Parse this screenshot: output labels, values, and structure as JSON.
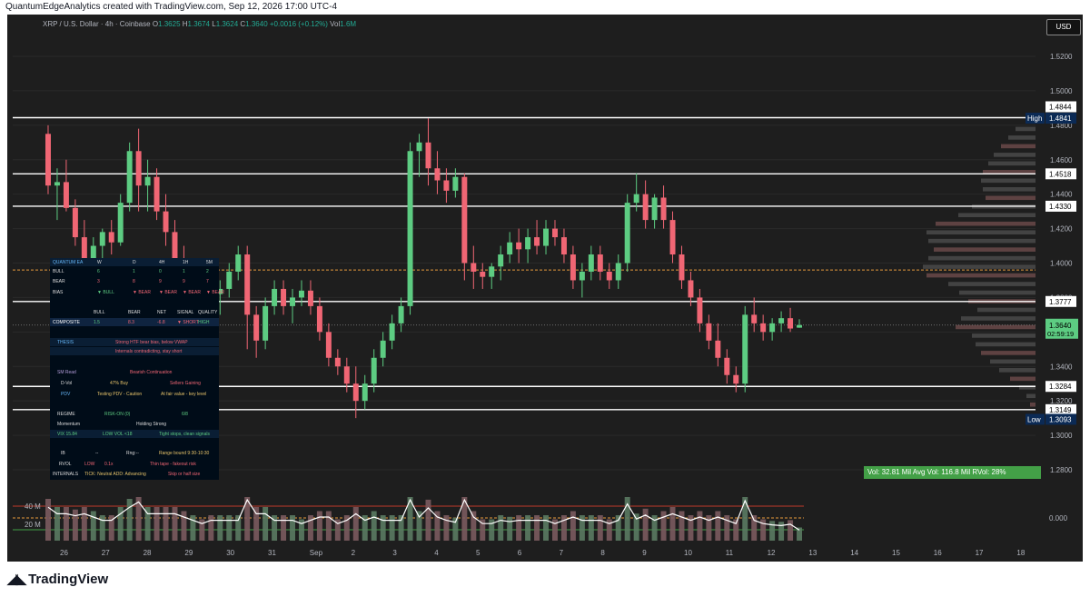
{
  "header": {
    "attribution": "QuantumEdgeAnalytics created with TradingView.com, Sep 12, 2026 17:00 UTC-4"
  },
  "legend": {
    "symbol": "XRP / U.S. Dollar · 4h · Coinbase",
    "open_label": "O",
    "open": "1.3625",
    "high_label": "H",
    "high": "1.3674",
    "low_label": "L",
    "low": "1.3624",
    "close_label": "C",
    "close": "1.3640",
    "change": "+0.0016 (+0.12%)",
    "vol_label": "Vol",
    "vol": "1.6M"
  },
  "currency_button": "USD",
  "branding": {
    "name": "TradingView"
  },
  "colors": {
    "background": "#1e1e1e",
    "up": "#5dcc82",
    "down": "#f06674",
    "level_line": "#ffffff",
    "poc_line": "#e69a3c",
    "panel_bg": "#000c18"
  },
  "price_axis": {
    "ticks": [
      "1.5200",
      "1.5000",
      "1.4800",
      "1.4600",
      "1.4400",
      "1.4200",
      "1.4000",
      "1.3800",
      "1.3600",
      "1.3400",
      "1.3200",
      "1.3000",
      "1.2800"
    ],
    "levels": [
      "1.4844",
      "1.4841",
      "1.4518",
      "1.4330",
      "1.3777",
      "1.3640",
      "02:59:19",
      "1.3284",
      "1.3149",
      "1.3093"
    ],
    "high_label": "High",
    "low_label": "Low",
    "volume_ticks": [
      "0.000"
    ],
    "volume_left_ticks": [
      "40 M",
      "20 M"
    ]
  },
  "time_axis": {
    "labels": [
      "26",
      "27",
      "28",
      "29",
      "30",
      "31",
      "Sep",
      "2",
      "3",
      "4",
      "5",
      "6",
      "7",
      "8",
      "9",
      "10",
      "11",
      "12",
      "13",
      "14",
      "15",
      "16",
      "17",
      "18"
    ]
  },
  "volume_stats": "Vol: 32.81 Mil  Avg Vol: 116.8 Mil  RVol: 28%",
  "panel": {
    "header": [
      "QUANTUM EA",
      "W",
      "D",
      "4H",
      "1H",
      "5M"
    ],
    "bull": [
      "BULL",
      "6",
      "1",
      "0",
      "1",
      "2"
    ],
    "bear": [
      "BEAR",
      "3",
      "8",
      "9",
      "9",
      "7"
    ],
    "bias": [
      "BIAS",
      "▼ BULL",
      "▼ BEAR",
      "▼ BEAR",
      "▼ BEAR",
      "▼ BEAR"
    ],
    "comp_head": [
      "BULL",
      "BEAR",
      "NET",
      "SIGNAL",
      "QUALITY"
    ],
    "composite": [
      "COMPOSITE",
      "1.5",
      "8.3",
      "-6.8",
      "▼ SHORT",
      "HIGH"
    ],
    "thesis_label": "THESIS",
    "thesis": "Strong HTF bear bias, below VWAP",
    "thesis2": "Internals contradicting, stay short",
    "smread_label": "SM Read",
    "smread": "Bearish Continuation",
    "dvol": [
      "D-Vol",
      "47% Buy",
      "Sellers Gaining"
    ],
    "pdv": [
      "PDV",
      "Testing PDV - Caution",
      "At fair value - key level"
    ],
    "regime": [
      "REGIME",
      "RISK-ON (0)",
      "6/8"
    ],
    "momentum": [
      "Momentum",
      "Holding Strong"
    ],
    "vix": [
      "VIX 15.84",
      "LOW VOL <18",
      "Tight stops, clean signals"
    ],
    "ib": [
      "IB",
      "--",
      "Rng:--",
      "Range bound 9:30-10:30"
    ],
    "rvol": [
      "RVOL",
      "LOW",
      "0.1x",
      "Thin tape - fakeout risk"
    ],
    "internals": [
      "INTERNALS",
      "TICK: Neutral ADD: Advancing",
      "Skip or half size"
    ]
  },
  "chart_data": {
    "type": "candlestick",
    "title": "",
    "symbol": "XRP / U.S. Dollar · 4h · Coinbase",
    "ylim": [
      1.27,
      1.525
    ],
    "x_dates": [
      "26",
      "27",
      "28",
      "29",
      "30",
      "31",
      "Sep",
      "2",
      "3",
      "4",
      "5",
      "6",
      "7",
      "8",
      "9",
      "10",
      "11",
      "12"
    ],
    "candles": [
      [
        1.475,
        1.48,
        1.44,
        1.445
      ],
      [
        1.445,
        1.455,
        1.425,
        1.447
      ],
      [
        1.447,
        1.46,
        1.43,
        1.432
      ],
      [
        1.432,
        1.437,
        1.41,
        1.415
      ],
      [
        1.415,
        1.425,
        1.395,
        1.4
      ],
      [
        1.4,
        1.415,
        1.39,
        1.41
      ],
      [
        1.41,
        1.42,
        1.4,
        1.418
      ],
      [
        1.418,
        1.425,
        1.405,
        1.412
      ],
      [
        1.412,
        1.44,
        1.41,
        1.435
      ],
      [
        1.435,
        1.47,
        1.43,
        1.465
      ],
      [
        1.465,
        1.478,
        1.43,
        1.445
      ],
      [
        1.445,
        1.46,
        1.43,
        1.45
      ],
      [
        1.45,
        1.455,
        1.425,
        1.43
      ],
      [
        1.43,
        1.44,
        1.41,
        1.418
      ],
      [
        1.418,
        1.425,
        1.395,
        1.4
      ],
      [
        1.4,
        1.41,
        1.385,
        1.39
      ],
      [
        1.39,
        1.4,
        1.38,
        1.395
      ],
      [
        1.395,
        1.4,
        1.385,
        1.388
      ],
      [
        1.388,
        1.395,
        1.375,
        1.382
      ],
      [
        1.382,
        1.39,
        1.37,
        1.385
      ],
      [
        1.385,
        1.4,
        1.38,
        1.395
      ],
      [
        1.395,
        1.41,
        1.39,
        1.405
      ],
      [
        1.405,
        1.41,
        1.35,
        1.37
      ],
      [
        1.37,
        1.375,
        1.345,
        1.355
      ],
      [
        1.355,
        1.38,
        1.35,
        1.375
      ],
      [
        1.375,
        1.39,
        1.37,
        1.385
      ],
      [
        1.385,
        1.39,
        1.37,
        1.375
      ],
      [
        1.375,
        1.385,
        1.365,
        1.38
      ],
      [
        1.38,
        1.39,
        1.375,
        1.384
      ],
      [
        1.384,
        1.39,
        1.37,
        1.375
      ],
      [
        1.375,
        1.38,
        1.355,
        1.36
      ],
      [
        1.36,
        1.365,
        1.34,
        1.345
      ],
      [
        1.345,
        1.35,
        1.335,
        1.34
      ],
      [
        1.34,
        1.345,
        1.325,
        1.33
      ],
      [
        1.33,
        1.34,
        1.31,
        1.32
      ],
      [
        1.32,
        1.335,
        1.315,
        1.33
      ],
      [
        1.33,
        1.35,
        1.325,
        1.345
      ],
      [
        1.345,
        1.36,
        1.34,
        1.355
      ],
      [
        1.355,
        1.37,
        1.35,
        1.365
      ],
      [
        1.365,
        1.38,
        1.36,
        1.375
      ],
      [
        1.375,
        1.47,
        1.37,
        1.465
      ],
      [
        1.465,
        1.475,
        1.45,
        1.47
      ],
      [
        1.47,
        1.484,
        1.445,
        1.455
      ],
      [
        1.455,
        1.465,
        1.44,
        1.448
      ],
      [
        1.448,
        1.455,
        1.435,
        1.442
      ],
      [
        1.442,
        1.455,
        1.438,
        1.45
      ],
      [
        1.45,
        1.452,
        1.39,
        1.4
      ],
      [
        1.4,
        1.41,
        1.385,
        1.395
      ],
      [
        1.395,
        1.4,
        1.385,
        1.392
      ],
      [
        1.392,
        1.4,
        1.385,
        1.398
      ],
      [
        1.398,
        1.41,
        1.39,
        1.405
      ],
      [
        1.405,
        1.418,
        1.4,
        1.412
      ],
      [
        1.412,
        1.42,
        1.4,
        1.408
      ],
      [
        1.408,
        1.42,
        1.4,
        1.415
      ],
      [
        1.415,
        1.425,
        1.405,
        1.41
      ],
      [
        1.41,
        1.425,
        1.405,
        1.42
      ],
      [
        1.42,
        1.425,
        1.41,
        1.415
      ],
      [
        1.415,
        1.42,
        1.4,
        1.405
      ],
      [
        1.405,
        1.41,
        1.385,
        1.39
      ],
      [
        1.39,
        1.4,
        1.38,
        1.395
      ],
      [
        1.395,
        1.41,
        1.39,
        1.405
      ],
      [
        1.405,
        1.41,
        1.39,
        1.395
      ],
      [
        1.395,
        1.4,
        1.385,
        1.39
      ],
      [
        1.39,
        1.405,
        1.385,
        1.4
      ],
      [
        1.4,
        1.44,
        1.395,
        1.435
      ],
      [
        1.435,
        1.452,
        1.43,
        1.44
      ],
      [
        1.44,
        1.448,
        1.42,
        1.425
      ],
      [
        1.425,
        1.44,
        1.42,
        1.438
      ],
      [
        1.438,
        1.445,
        1.42,
        1.425
      ],
      [
        1.425,
        1.43,
        1.4,
        1.405
      ],
      [
        1.405,
        1.41,
        1.385,
        1.39
      ],
      [
        1.39,
        1.395,
        1.375,
        1.38
      ],
      [
        1.38,
        1.385,
        1.36,
        1.365
      ],
      [
        1.365,
        1.37,
        1.35,
        1.355
      ],
      [
        1.355,
        1.365,
        1.34,
        1.345
      ],
      [
        1.345,
        1.35,
        1.33,
        1.335
      ],
      [
        1.335,
        1.34,
        1.325,
        1.33
      ],
      [
        1.33,
        1.375,
        1.325,
        1.37
      ],
      [
        1.37,
        1.38,
        1.36,
        1.365
      ],
      [
        1.365,
        1.37,
        1.355,
        1.36
      ],
      [
        1.36,
        1.368,
        1.355,
        1.365
      ],
      [
        1.365,
        1.372,
        1.36,
        1.368
      ],
      [
        1.368,
        1.374,
        1.36,
        1.362
      ],
      [
        1.3625,
        1.3674,
        1.3624,
        1.364
      ]
    ],
    "levels": [
      1.4844,
      1.4518,
      1.433,
      1.3777,
      1.3284,
      1.3149
    ],
    "poc": 1.396,
    "volume_series": {
      "name": "Volume",
      "ylim": [
        0,
        40000000
      ]
    }
  }
}
